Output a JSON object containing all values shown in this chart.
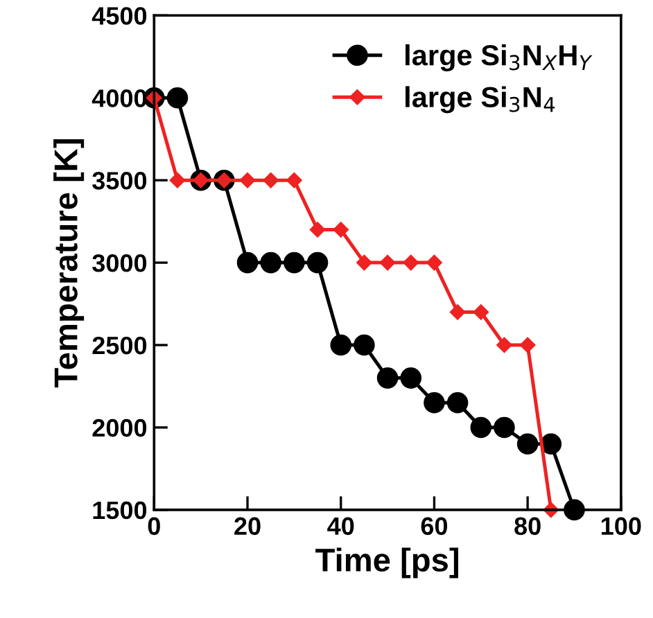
{
  "chart_data": {
    "type": "line",
    "xlabel": "Time [ps]",
    "ylabel": "Temperature [K]",
    "xlim": [
      0,
      100
    ],
    "xticks": [
      0,
      20,
      40,
      60,
      80,
      100
    ],
    "ylim": [
      1500,
      4500
    ],
    "yticks": [
      1500,
      2000,
      2500,
      3000,
      3500,
      4000,
      4500
    ],
    "grid": false,
    "legend": "top right",
    "line_style": "solid",
    "series": [
      {
        "name": "large Si$_{3}$N$_{X}$H$_{Y}$",
        "color": "#000000",
        "marker": "circle",
        "x": [
          0,
          5,
          10,
          15,
          20,
          25,
          30,
          35,
          40,
          45,
          50,
          55,
          60,
          65,
          70,
          75,
          80,
          85,
          90
        ],
        "values": [
          4000,
          4000,
          3500,
          3500,
          3000,
          3000,
          3000,
          3000,
          2500,
          2500,
          2300,
          2300,
          2150,
          2150,
          2000,
          2000,
          1900,
          1900,
          1500
        ]
      },
      {
        "name": "large Si$_{3}$N$_{4}$",
        "color": "#ee2222",
        "marker": "diamond",
        "x": [
          0,
          5,
          10,
          15,
          20,
          25,
          30,
          35,
          40,
          45,
          50,
          55,
          60,
          65,
          70,
          75,
          80,
          85
        ],
        "values": [
          4000,
          3500,
          3500,
          3500,
          3500,
          3500,
          3500,
          3200,
          3200,
          3000,
          3000,
          3000,
          3000,
          2700,
          2700,
          2500,
          2500,
          1500
        ]
      }
    ]
  }
}
